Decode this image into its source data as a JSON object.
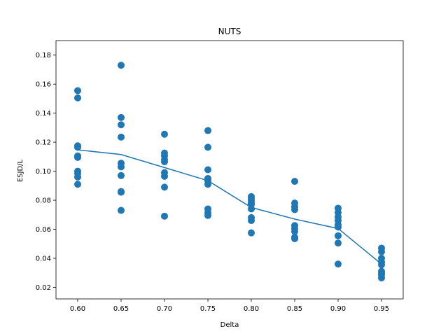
{
  "chart_data": {
    "type": "scatter",
    "title": "NUTS",
    "xlabel": "Delta",
    "ylabel": "ESJD/L",
    "xlim": [
      0.575,
      0.975
    ],
    "ylim": [
      0.012,
      0.19
    ],
    "x_ticks": [
      "0.60",
      "0.65",
      "0.70",
      "0.75",
      "0.80",
      "0.85",
      "0.90",
      "0.95"
    ],
    "y_ticks": [
      "0.02",
      "0.04",
      "0.06",
      "0.08",
      "0.10",
      "0.12",
      "0.14",
      "0.16",
      "0.18"
    ],
    "grid": false,
    "color": "#1f77b4",
    "points": [
      {
        "x": 0.6,
        "y": 0.1555
      },
      {
        "x": 0.6,
        "y": 0.1505
      },
      {
        "x": 0.6,
        "y": 0.1175
      },
      {
        "x": 0.6,
        "y": 0.1165
      },
      {
        "x": 0.6,
        "y": 0.1105
      },
      {
        "x": 0.6,
        "y": 0.1095
      },
      {
        "x": 0.6,
        "y": 0.1
      },
      {
        "x": 0.6,
        "y": 0.0985
      },
      {
        "x": 0.6,
        "y": 0.096
      },
      {
        "x": 0.6,
        "y": 0.091
      },
      {
        "x": 0.65,
        "y": 0.173
      },
      {
        "x": 0.65,
        "y": 0.137
      },
      {
        "x": 0.65,
        "y": 0.132
      },
      {
        "x": 0.65,
        "y": 0.1235
      },
      {
        "x": 0.65,
        "y": 0.1055
      },
      {
        "x": 0.65,
        "y": 0.103
      },
      {
        "x": 0.65,
        "y": 0.097
      },
      {
        "x": 0.65,
        "y": 0.086
      },
      {
        "x": 0.65,
        "y": 0.0855
      },
      {
        "x": 0.65,
        "y": 0.073
      },
      {
        "x": 0.7,
        "y": 0.1255
      },
      {
        "x": 0.7,
        "y": 0.1125
      },
      {
        "x": 0.7,
        "y": 0.1105
      },
      {
        "x": 0.7,
        "y": 0.108
      },
      {
        "x": 0.7,
        "y": 0.1065
      },
      {
        "x": 0.7,
        "y": 0.099
      },
      {
        "x": 0.7,
        "y": 0.0965
      },
      {
        "x": 0.7,
        "y": 0.089
      },
      {
        "x": 0.7,
        "y": 0.069
      },
      {
        "x": 0.75,
        "y": 0.128
      },
      {
        "x": 0.75,
        "y": 0.1165
      },
      {
        "x": 0.75,
        "y": 0.101
      },
      {
        "x": 0.75,
        "y": 0.095
      },
      {
        "x": 0.75,
        "y": 0.0935
      },
      {
        "x": 0.75,
        "y": 0.091
      },
      {
        "x": 0.75,
        "y": 0.074
      },
      {
        "x": 0.75,
        "y": 0.0715
      },
      {
        "x": 0.75,
        "y": 0.0695
      },
      {
        "x": 0.8,
        "y": 0.0825
      },
      {
        "x": 0.8,
        "y": 0.081
      },
      {
        "x": 0.8,
        "y": 0.0795
      },
      {
        "x": 0.8,
        "y": 0.078
      },
      {
        "x": 0.8,
        "y": 0.077
      },
      {
        "x": 0.8,
        "y": 0.074
      },
      {
        "x": 0.8,
        "y": 0.068
      },
      {
        "x": 0.8,
        "y": 0.066
      },
      {
        "x": 0.8,
        "y": 0.0575
      },
      {
        "x": 0.85,
        "y": 0.093
      },
      {
        "x": 0.85,
        "y": 0.078
      },
      {
        "x": 0.85,
        "y": 0.0755
      },
      {
        "x": 0.85,
        "y": 0.0735
      },
      {
        "x": 0.85,
        "y": 0.0625
      },
      {
        "x": 0.85,
        "y": 0.0605
      },
      {
        "x": 0.85,
        "y": 0.0585
      },
      {
        "x": 0.85,
        "y": 0.0545
      },
      {
        "x": 0.85,
        "y": 0.0535
      },
      {
        "x": 0.9,
        "y": 0.0745
      },
      {
        "x": 0.9,
        "y": 0.0715
      },
      {
        "x": 0.9,
        "y": 0.0685
      },
      {
        "x": 0.9,
        "y": 0.066
      },
      {
        "x": 0.9,
        "y": 0.063
      },
      {
        "x": 0.9,
        "y": 0.0615
      },
      {
        "x": 0.9,
        "y": 0.0555
      },
      {
        "x": 0.9,
        "y": 0.0505
      },
      {
        "x": 0.9,
        "y": 0.036
      },
      {
        "x": 0.95,
        "y": 0.047
      },
      {
        "x": 0.95,
        "y": 0.0445
      },
      {
        "x": 0.95,
        "y": 0.04
      },
      {
        "x": 0.95,
        "y": 0.0375
      },
      {
        "x": 0.95,
        "y": 0.0355
      },
      {
        "x": 0.95,
        "y": 0.031
      },
      {
        "x": 0.95,
        "y": 0.03
      },
      {
        "x": 0.95,
        "y": 0.0285
      },
      {
        "x": 0.95,
        "y": 0.0265
      }
    ],
    "mean_line": {
      "x": [
        0.6,
        0.65,
        0.7,
        0.75,
        0.8,
        0.85,
        0.9,
        0.95
      ],
      "y": [
        0.1147,
        0.1115,
        0.1025,
        0.0935,
        0.075,
        0.067,
        0.0605,
        0.036
      ]
    }
  }
}
